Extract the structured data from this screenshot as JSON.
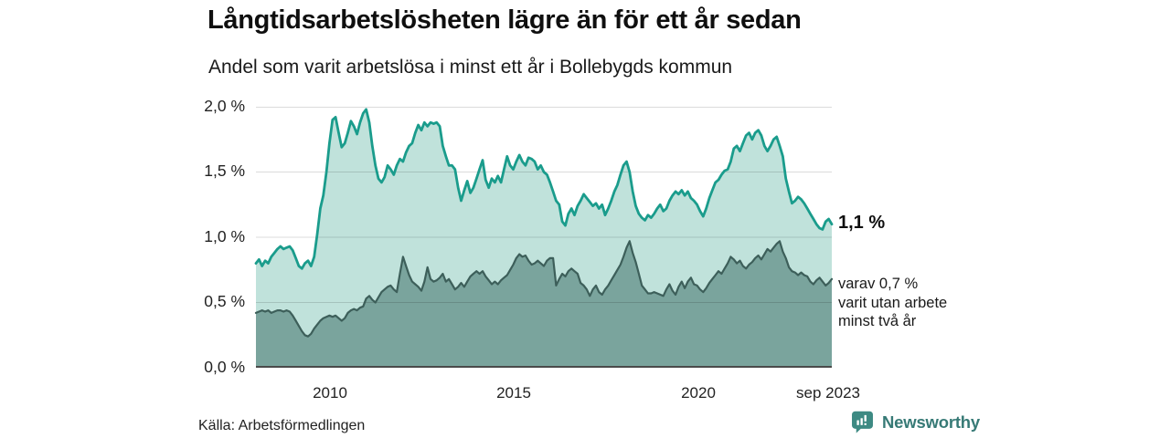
{
  "header": {
    "title": "Långtidsarbetslösheten lägre än för ett år sedan",
    "subtitle": "Andel som varit arbetslösa i minst ett år i Bollebygds kommun"
  },
  "chart_data": {
    "type": "area",
    "title": "Långtidsarbetslösheten lägre än för ett år sedan",
    "subtitle": "Andel som varit arbetslösa i minst ett år i Bollebygds kommun",
    "unit": "%",
    "frequency": "monthly",
    "x_start": "2008-01",
    "x_end": "2023-09",
    "ylim": [
      0,
      2
    ],
    "grid": true,
    "legend_position": "none",
    "yticks": [
      "2,0 %",
      "1,5 %",
      "1,0 %",
      "0,5 %",
      "0,0 %"
    ],
    "xticks": [
      "2010",
      "2015",
      "2020",
      "sep 2023"
    ],
    "series": [
      {
        "name": "arbetslösa minst ett år (totalt)",
        "color": "#1a9c8c",
        "fill": "#c0e2db",
        "latest_value": 1.1,
        "values": [
          0.8,
          0.83,
          0.78,
          0.82,
          0.8,
          0.85,
          0.88,
          0.91,
          0.93,
          0.91,
          0.92,
          0.93,
          0.9,
          0.84,
          0.78,
          0.76,
          0.8,
          0.82,
          0.78,
          0.85,
          1.02,
          1.22,
          1.32,
          1.5,
          1.72,
          1.9,
          1.92,
          1.8,
          1.69,
          1.72,
          1.8,
          1.89,
          1.85,
          1.79,
          1.88,
          1.95,
          1.98,
          1.88,
          1.7,
          1.55,
          1.45,
          1.42,
          1.46,
          1.55,
          1.52,
          1.48,
          1.55,
          1.6,
          1.58,
          1.65,
          1.7,
          1.72,
          1.8,
          1.86,
          1.82,
          1.88,
          1.85,
          1.88,
          1.87,
          1.88,
          1.85,
          1.7,
          1.62,
          1.55,
          1.55,
          1.52,
          1.38,
          1.28,
          1.36,
          1.43,
          1.34,
          1.38,
          1.45,
          1.52,
          1.59,
          1.44,
          1.38,
          1.45,
          1.42,
          1.47,
          1.42,
          1.52,
          1.62,
          1.55,
          1.52,
          1.58,
          1.63,
          1.58,
          1.55,
          1.61,
          1.6,
          1.58,
          1.52,
          1.55,
          1.5,
          1.48,
          1.42,
          1.35,
          1.28,
          1.25,
          1.12,
          1.09,
          1.18,
          1.22,
          1.17,
          1.24,
          1.28,
          1.33,
          1.3,
          1.27,
          1.24,
          1.26,
          1.22,
          1.25,
          1.17,
          1.22,
          1.28,
          1.35,
          1.4,
          1.48,
          1.55,
          1.58,
          1.5,
          1.35,
          1.24,
          1.18,
          1.15,
          1.13,
          1.17,
          1.15,
          1.18,
          1.22,
          1.25,
          1.2,
          1.22,
          1.28,
          1.32,
          1.35,
          1.33,
          1.36,
          1.32,
          1.35,
          1.3,
          1.28,
          1.25,
          1.2,
          1.16,
          1.22,
          1.3,
          1.36,
          1.42,
          1.44,
          1.48,
          1.51,
          1.52,
          1.58,
          1.68,
          1.7,
          1.66,
          1.72,
          1.78,
          1.8,
          1.75,
          1.8,
          1.82,
          1.78,
          1.7,
          1.66,
          1.7,
          1.75,
          1.77,
          1.7,
          1.62,
          1.45,
          1.35,
          1.26,
          1.28,
          1.31,
          1.29,
          1.26,
          1.22,
          1.18,
          1.14,
          1.1,
          1.07,
          1.06,
          1.12,
          1.14,
          1.1
        ]
      },
      {
        "name": "varav utan arbete minst två år",
        "color": "#3d5f5a",
        "fill": "#7aa49d",
        "latest_value": 0.7,
        "values": [
          0.42,
          0.43,
          0.44,
          0.43,
          0.44,
          0.42,
          0.43,
          0.44,
          0.44,
          0.43,
          0.44,
          0.43,
          0.4,
          0.36,
          0.32,
          0.28,
          0.25,
          0.24,
          0.26,
          0.3,
          0.33,
          0.36,
          0.38,
          0.39,
          0.4,
          0.39,
          0.4,
          0.38,
          0.36,
          0.38,
          0.42,
          0.44,
          0.45,
          0.44,
          0.46,
          0.47,
          0.53,
          0.55,
          0.52,
          0.5,
          0.54,
          0.58,
          0.6,
          0.62,
          0.63,
          0.6,
          0.58,
          0.72,
          0.85,
          0.78,
          0.71,
          0.66,
          0.64,
          0.62,
          0.59,
          0.66,
          0.77,
          0.68,
          0.66,
          0.67,
          0.69,
          0.72,
          0.66,
          0.68,
          0.64,
          0.6,
          0.62,
          0.65,
          0.62,
          0.66,
          0.7,
          0.72,
          0.74,
          0.72,
          0.74,
          0.7,
          0.67,
          0.64,
          0.66,
          0.64,
          0.67,
          0.69,
          0.71,
          0.75,
          0.79,
          0.84,
          0.87,
          0.85,
          0.86,
          0.82,
          0.79,
          0.8,
          0.82,
          0.8,
          0.78,
          0.82,
          0.84,
          0.84,
          0.63,
          0.68,
          0.72,
          0.7,
          0.74,
          0.76,
          0.74,
          0.72,
          0.65,
          0.63,
          0.6,
          0.55,
          0.6,
          0.63,
          0.58,
          0.56,
          0.6,
          0.63,
          0.67,
          0.71,
          0.75,
          0.79,
          0.85,
          0.92,
          0.97,
          0.88,
          0.81,
          0.72,
          0.63,
          0.6,
          0.57,
          0.57,
          0.58,
          0.57,
          0.56,
          0.55,
          0.6,
          0.64,
          0.59,
          0.56,
          0.62,
          0.66,
          0.61,
          0.66,
          0.69,
          0.64,
          0.63,
          0.6,
          0.58,
          0.61,
          0.65,
          0.68,
          0.71,
          0.74,
          0.72,
          0.76,
          0.8,
          0.85,
          0.83,
          0.8,
          0.82,
          0.78,
          0.76,
          0.79,
          0.81,
          0.84,
          0.86,
          0.83,
          0.87,
          0.91,
          0.89,
          0.92,
          0.95,
          0.97,
          0.89,
          0.84,
          0.77,
          0.74,
          0.73,
          0.71,
          0.73,
          0.71,
          0.7,
          0.66,
          0.64,
          0.67,
          0.69,
          0.66,
          0.63,
          0.65,
          0.68
        ]
      }
    ],
    "annotations": [
      {
        "text": "1,1 %",
        "series": 0,
        "position": "end"
      },
      {
        "text": "varav 0,7 % varit utan arbete minst två år",
        "series": 1,
        "position": "end"
      }
    ]
  },
  "annotation_total": "1,1 %",
  "annotation_two_year": [
    "varav 0,7 %",
    "varit utan arbete",
    "minst två år"
  ],
  "footer": {
    "source": "Källa: Arbetsförmedlingen",
    "brand": "Newsworthy"
  },
  "colors": {
    "line_total": "#1a9c8c",
    "fill_total": "#c0e2db",
    "line_two_year": "#3d5f5a",
    "fill_two_year": "#7aa49d",
    "axis": "#4a4a4a",
    "brand_teal": "#3d8a83",
    "brand_text": "#377a76"
  }
}
